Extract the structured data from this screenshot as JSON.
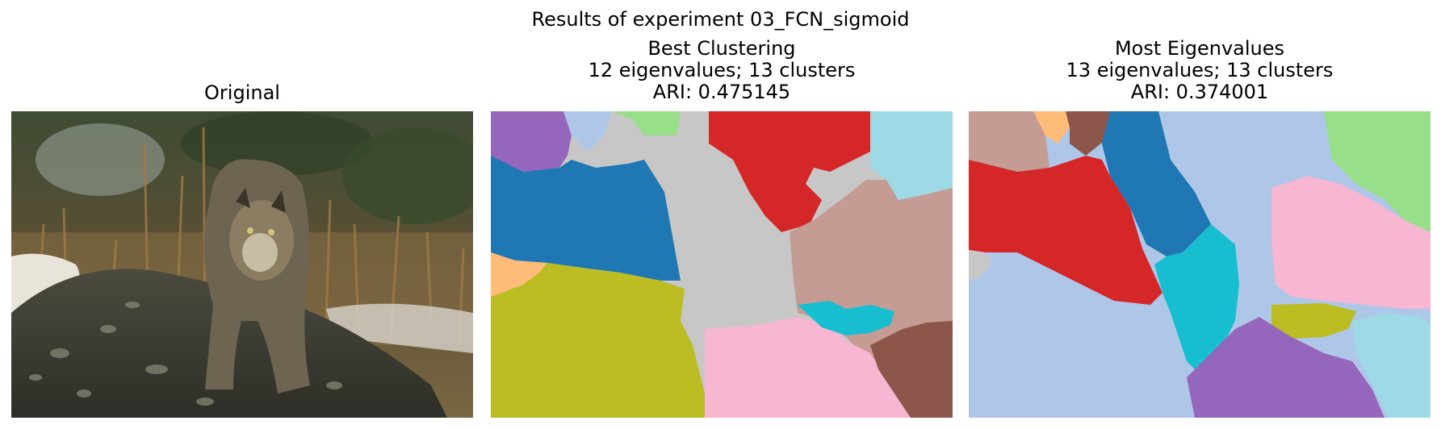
{
  "figure": {
    "suptitle": "Results of experiment 03_FCN_sigmoid"
  },
  "panels": [
    {
      "title_lines": [
        "Original"
      ],
      "kind": "photo"
    },
    {
      "title_lines": [
        "Best Clustering",
        "12 eigenvalues; 13 clusters",
        "ARI: 0.475145"
      ],
      "kind": "segmentation"
    },
    {
      "title_lines": [
        "Most Eigenvalues",
        "13 eigenvalues; 13 clusters",
        "ARI: 0.374001"
      ],
      "kind": "segmentation"
    }
  ],
  "palette": {
    "blue": "#1f77b4",
    "light_blue": "#aec7e8",
    "orange": "#ffbb78",
    "green": "#98df8a",
    "red": "#d62728",
    "purple": "#9467bd",
    "brown": "#8c564b",
    "rose": "#c49c94",
    "pink": "#f7b6d2",
    "gray": "#c7c7c7",
    "olive": "#bcbd22",
    "cyan": "#17becf",
    "light_cyan": "#9edae5"
  }
}
